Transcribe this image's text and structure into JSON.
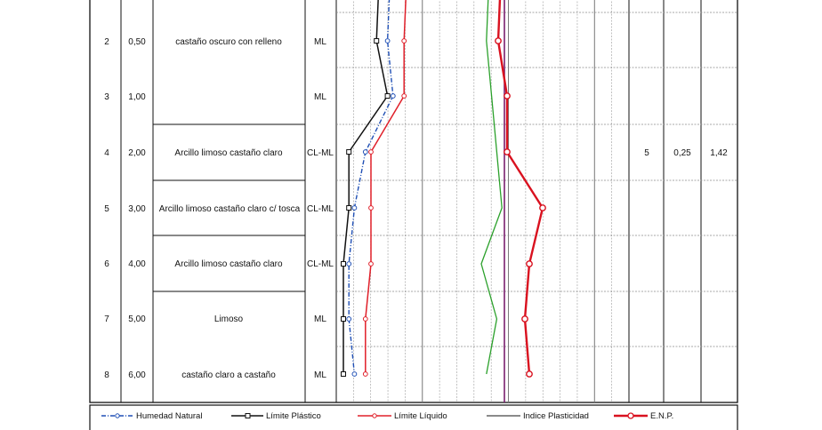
{
  "rows": [
    {
      "n": "2",
      "depth": "0,50",
      "description": "castaño oscuro con relleno",
      "class": "ML"
    },
    {
      "n": "3",
      "depth": "1,00",
      "description": "",
      "class": "ML"
    },
    {
      "n": "4",
      "depth": "2,00",
      "description": "Arcillo limoso castaño claro",
      "class": "CL-ML",
      "spt": "5",
      "c1": "0,25",
      "c2": "1,42"
    },
    {
      "n": "5",
      "depth": "3,00",
      "description": "Arcillo limoso castaño claro c/ tosca",
      "class": "CL-ML"
    },
    {
      "n": "6",
      "depth": "4,00",
      "description": "Arcillo limoso castaño claro",
      "class": "CL-ML"
    },
    {
      "n": "7",
      "depth": "5,00",
      "description": "Limoso",
      "class": "ML"
    },
    {
      "n": "8",
      "depth": "6,00",
      "description": "castaño claro a castaño",
      "class": "ML"
    }
  ],
  "legend": {
    "humedad": "Humedad Natural",
    "plastico": "Límite Plástico",
    "liquido": "Límite Líquido",
    "plasticidad": "Indice Plasticidad",
    "enp": "E.N.P."
  },
  "chart_data": {
    "type": "line",
    "x": [
      "0,50",
      "1,00",
      "2,00",
      "3,00",
      "4,00",
      "5,00",
      "6,00"
    ],
    "series": [
      {
        "name": "Humedad Natural",
        "color": "#1f4fb5",
        "values": [
          28,
          29,
          24,
          22,
          21,
          21,
          22
        ]
      },
      {
        "name": "Límite Plástico",
        "color": "#111111",
        "values": [
          26,
          28,
          21,
          21,
          20,
          20,
          20
        ]
      },
      {
        "name": "Límite Líquido",
        "color": "#e0202a",
        "values": [
          31,
          31,
          25,
          25,
          25,
          24,
          24
        ]
      },
      {
        "name": "Indice Plasticidad",
        "color": "#2aa02a",
        "values": [
          6,
          7,
          8,
          9,
          5,
          8,
          6
        ]
      },
      {
        "name": "E.N.P.",
        "color": "#d9111f",
        "values": [
          12,
          14,
          14,
          22,
          19,
          18,
          19
        ]
      }
    ]
  }
}
